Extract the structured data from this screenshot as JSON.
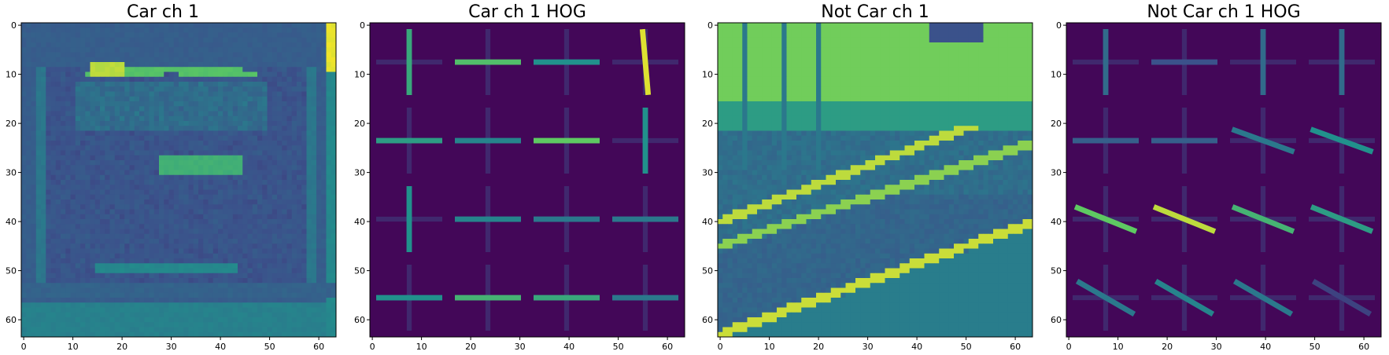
{
  "panels": [
    {
      "title": "Car ch 1",
      "kind": "image",
      "scene": "car",
      "x_ticks": [
        "0",
        "10",
        "20",
        "30",
        "40",
        "50",
        "60"
      ],
      "y_ticks": [
        "0",
        "10",
        "20",
        "30",
        "40",
        "50",
        "60"
      ]
    },
    {
      "title": "Car ch 1 HOG",
      "kind": "hog",
      "scene": "car",
      "x_ticks": [
        "0",
        "10",
        "20",
        "30",
        "40",
        "50",
        "60"
      ],
      "y_ticks": [
        "0",
        "10",
        "20",
        "30",
        "40",
        "50",
        "60"
      ]
    },
    {
      "title": "Not Car ch 1",
      "kind": "image",
      "scene": "road",
      "x_ticks": [
        "0",
        "10",
        "20",
        "30",
        "40",
        "50",
        "60"
      ],
      "y_ticks": [
        "0",
        "10",
        "20",
        "30",
        "40",
        "50",
        "60"
      ]
    },
    {
      "title": "Not Car ch 1 HOG",
      "kind": "hog",
      "scene": "road",
      "x_ticks": [
        "0",
        "10",
        "20",
        "30",
        "40",
        "50",
        "60"
      ],
      "y_ticks": [
        "0",
        "10",
        "20",
        "30",
        "40",
        "50",
        "60"
      ]
    }
  ],
  "colormap": "viridis",
  "image_extent": [
    64,
    64
  ]
}
